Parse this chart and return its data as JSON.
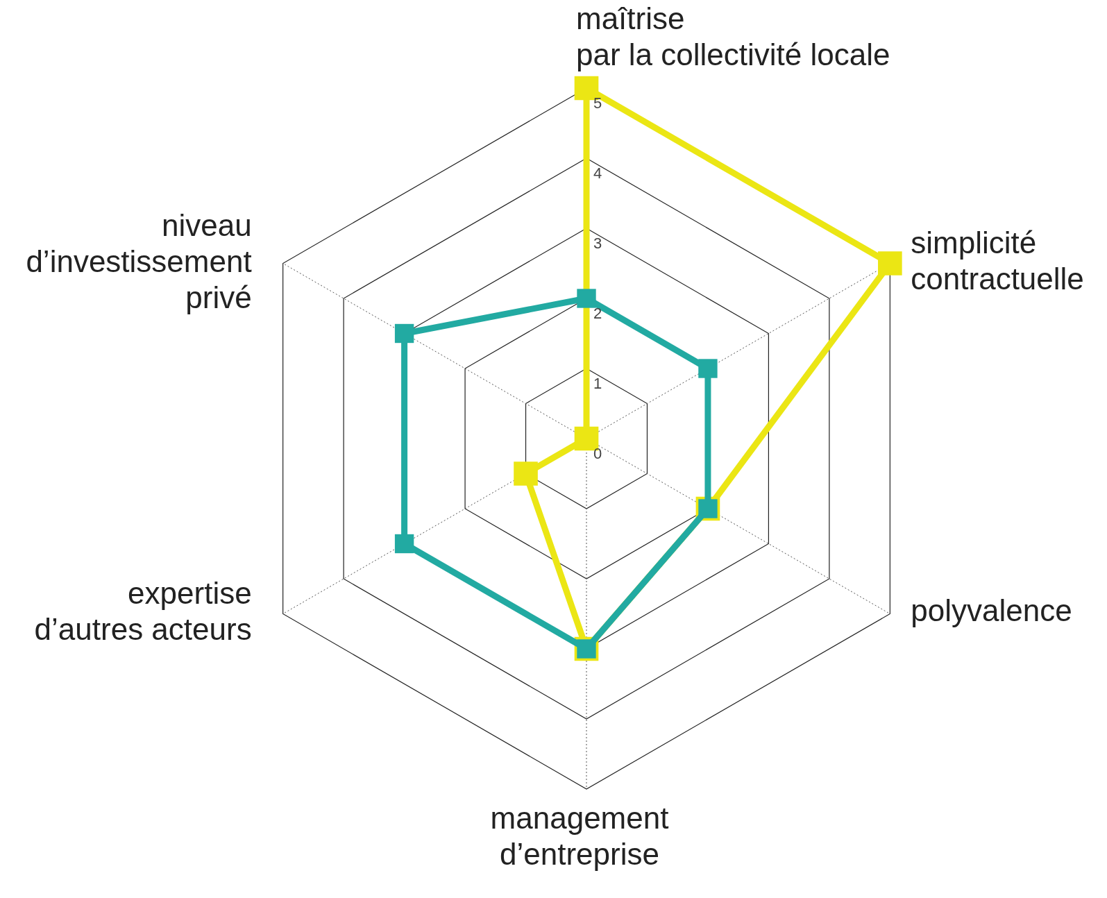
{
  "chart_data": {
    "type": "radar",
    "categories": [
      "maîtrise\npar la collectivité locale",
      "simplicité\ncontractuelle",
      "polyvalence",
      "management\nd’entreprise",
      "expertise\nd’autres acteurs",
      "niveau\nd’investissement\nprivé"
    ],
    "series": [
      {
        "color": "#ebe614",
        "values": [
          5,
          5,
          2,
          3,
          1,
          0
        ]
      },
      {
        "color": "#22aaa2",
        "values": [
          2,
          2,
          2,
          3,
          3,
          3
        ]
      }
    ],
    "ylim": [
      0,
      5
    ],
    "yticks": [
      0,
      1,
      2,
      3,
      4,
      5
    ],
    "grid": true,
    "marker": "square",
    "line_style": "solid"
  }
}
